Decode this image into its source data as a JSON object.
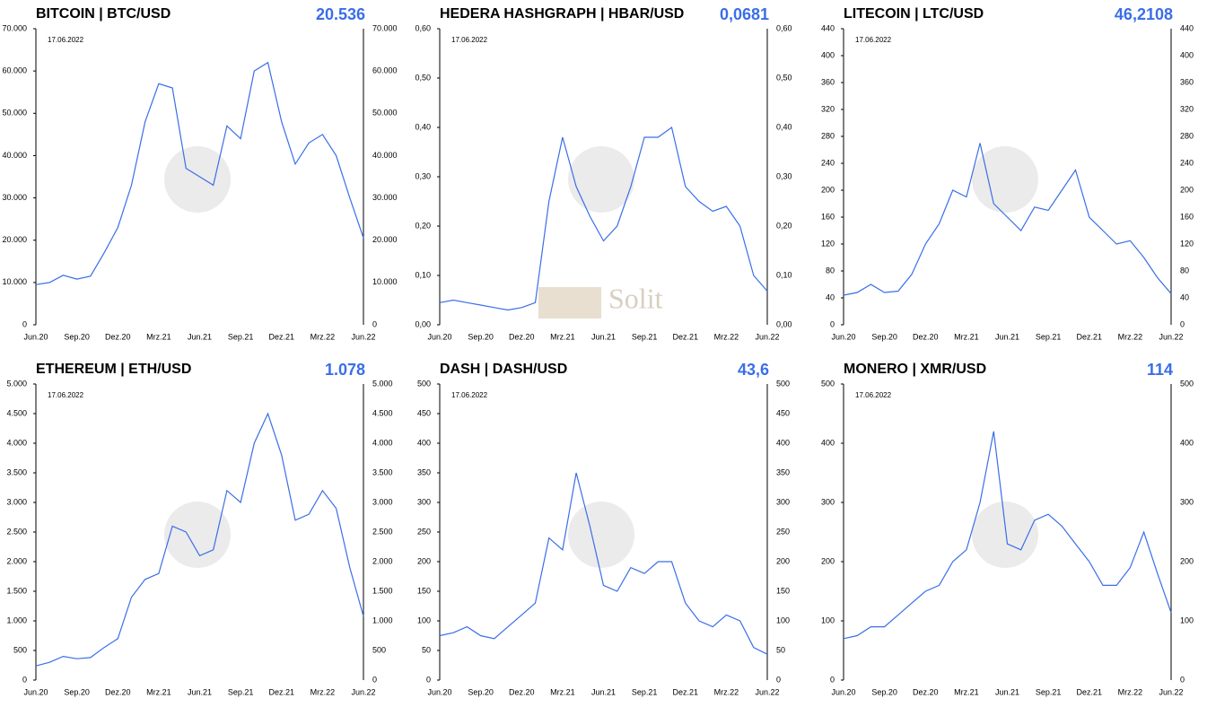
{
  "chart_data": [
    {
      "type": "line",
      "title": "BITCOIN | BTC/USD",
      "price": "20.536",
      "date_label": "17.06.2022",
      "color": "#3a6ee8",
      "x": [
        "2020-06",
        "2020-07",
        "2020-08",
        "2020-09",
        "2020-10",
        "2020-11",
        "2020-12",
        "2021-01",
        "2021-02",
        "2021-03",
        "2021-04",
        "2021-05",
        "2021-06",
        "2021-07",
        "2021-08",
        "2021-09",
        "2021-10",
        "2021-11",
        "2021-12",
        "2022-01",
        "2022-02",
        "2022-03",
        "2022-04",
        "2022-05",
        "2022-06"
      ],
      "values": [
        9500,
        10000,
        11700,
        10800,
        11500,
        17000,
        23000,
        33000,
        48000,
        57000,
        56000,
        37000,
        35000,
        33000,
        47000,
        44000,
        60000,
        62000,
        48000,
        38000,
        43000,
        45000,
        40000,
        30000,
        20536
      ],
      "xlim": [
        "2020-06",
        "2022-06"
      ],
      "xticks": [
        {
          "value": "2020-06",
          "label": "Jun.20"
        },
        {
          "value": "2020-09",
          "label": "Sep.20"
        },
        {
          "value": "2020-12",
          "label": "Dez.20"
        },
        {
          "value": "2021-03",
          "label": "Mrz.21"
        },
        {
          "value": "2021-06",
          "label": "Jun.21"
        },
        {
          "value": "2021-09",
          "label": "Sep.21"
        },
        {
          "value": "2021-12",
          "label": "Dez.21"
        },
        {
          "value": "2022-03",
          "label": "Mrz.22"
        },
        {
          "value": "2022-06",
          "label": "Jun.22"
        }
      ],
      "ylim": [
        0,
        70000
      ],
      "yticks": [
        0,
        {
          "value": 10000,
          "label": "10.000"
        },
        {
          "value": 20000,
          "label": "20.000"
        },
        {
          "value": 30000,
          "label": "30.000"
        },
        {
          "value": 40000,
          "label": "40.000"
        },
        {
          "value": 50000,
          "label": "50.000"
        },
        {
          "value": 60000,
          "label": "60.000"
        },
        {
          "value": 70000,
          "label": "70.000"
        }
      ]
    },
    {
      "type": "line",
      "title": "HEDERA HASHGRAPH | HBAR/USD",
      "price": "0,0681",
      "date_label": "17.06.2022",
      "color": "#3a6ee8",
      "watermark": "Solit",
      "x": [
        "2020-06",
        "2020-07",
        "2020-08",
        "2020-09",
        "2020-10",
        "2020-11",
        "2020-12",
        "2021-01",
        "2021-02",
        "2021-03",
        "2021-04",
        "2021-05",
        "2021-06",
        "2021-07",
        "2021-08",
        "2021-09",
        "2021-10",
        "2021-11",
        "2021-12",
        "2022-01",
        "2022-02",
        "2022-03",
        "2022-04",
        "2022-05",
        "2022-06"
      ],
      "values": [
        0.045,
        0.05,
        0.045,
        0.04,
        0.035,
        0.03,
        0.035,
        0.045,
        0.25,
        0.38,
        0.28,
        0.22,
        0.17,
        0.2,
        0.28,
        0.38,
        0.38,
        0.4,
        0.28,
        0.25,
        0.23,
        0.24,
        0.2,
        0.1,
        0.0681
      ],
      "xlim": [
        "2020-06",
        "2022-06"
      ],
      "xticks": [
        {
          "value": "2020-06",
          "label": "Jun.20"
        },
        {
          "value": "2020-09",
          "label": "Sep.20"
        },
        {
          "value": "2020-12",
          "label": "Dez.20"
        },
        {
          "value": "2021-03",
          "label": "Mrz.21"
        },
        {
          "value": "2021-06",
          "label": "Jun.21"
        },
        {
          "value": "2021-09",
          "label": "Sep.21"
        },
        {
          "value": "2021-12",
          "label": "Dez.21"
        },
        {
          "value": "2022-03",
          "label": "Mrz.22"
        },
        {
          "value": "2022-06",
          "label": "Jun.22"
        }
      ],
      "ylim": [
        0,
        0.6
      ],
      "yticks": [
        {
          "value": 0,
          "label": "0,00"
        },
        {
          "value": 0.1,
          "label": "0,10"
        },
        {
          "value": 0.2,
          "label": "0,20"
        },
        {
          "value": 0.3,
          "label": "0,30"
        },
        {
          "value": 0.4,
          "label": "0,40"
        },
        {
          "value": 0.5,
          "label": "0,50"
        },
        {
          "value": 0.6,
          "label": "0,60"
        }
      ]
    },
    {
      "type": "line",
      "title": "LITECOIN | LTC/USD",
      "price": "46,2108",
      "date_label": "17.06.2022",
      "color": "#3a6ee8",
      "x": [
        "2020-06",
        "2020-07",
        "2020-08",
        "2020-09",
        "2020-10",
        "2020-11",
        "2020-12",
        "2021-01",
        "2021-02",
        "2021-03",
        "2021-04",
        "2021-05",
        "2021-06",
        "2021-07",
        "2021-08",
        "2021-09",
        "2021-10",
        "2021-11",
        "2021-12",
        "2022-01",
        "2022-02",
        "2022-03",
        "2022-04",
        "2022-05",
        "2022-06"
      ],
      "values": [
        44,
        48,
        60,
        48,
        50,
        75,
        120,
        150,
        200,
        190,
        270,
        180,
        160,
        140,
        175,
        170,
        200,
        230,
        160,
        140,
        120,
        125,
        100,
        70,
        46.2108
      ],
      "xlim": [
        "2020-06",
        "2022-06"
      ],
      "xticks": [
        {
          "value": "2020-06",
          "label": "Jun.20"
        },
        {
          "value": "2020-09",
          "label": "Sep.20"
        },
        {
          "value": "2020-12",
          "label": "Dez.20"
        },
        {
          "value": "2021-03",
          "label": "Mrz.21"
        },
        {
          "value": "2021-06",
          "label": "Jun.21"
        },
        {
          "value": "2021-09",
          "label": "Sep.21"
        },
        {
          "value": "2021-12",
          "label": "Dez.21"
        },
        {
          "value": "2022-03",
          "label": "Mrz.22"
        },
        {
          "value": "2022-06",
          "label": "Jun.22"
        }
      ],
      "ylim": [
        0,
        440
      ],
      "yticks": [
        0,
        40,
        80,
        120,
        160,
        200,
        240,
        280,
        320,
        360,
        400,
        440
      ]
    },
    {
      "type": "line",
      "title": "ETHEREUM | ETH/USD",
      "price": "1.078",
      "date_label": "17.06.2022",
      "color": "#3a6ee8",
      "x": [
        "2020-06",
        "2020-07",
        "2020-08",
        "2020-09",
        "2020-10",
        "2020-11",
        "2020-12",
        "2021-01",
        "2021-02",
        "2021-03",
        "2021-04",
        "2021-05",
        "2021-06",
        "2021-07",
        "2021-08",
        "2021-09",
        "2021-10",
        "2021-11",
        "2021-12",
        "2022-01",
        "2022-02",
        "2022-03",
        "2022-04",
        "2022-05",
        "2022-06"
      ],
      "values": [
        240,
        300,
        400,
        360,
        380,
        550,
        700,
        1400,
        1700,
        1800,
        2600,
        2500,
        2100,
        2200,
        3200,
        3000,
        4000,
        4500,
        3800,
        2700,
        2800,
        3200,
        2900,
        1900,
        1078
      ],
      "xlim": [
        "2020-06",
        "2022-06"
      ],
      "xticks": [
        {
          "value": "2020-06",
          "label": "Jun.20"
        },
        {
          "value": "2020-09",
          "label": "Sep.20"
        },
        {
          "value": "2020-12",
          "label": "Dez.20"
        },
        {
          "value": "2021-03",
          "label": "Mrz.21"
        },
        {
          "value": "2021-06",
          "label": "Jun.21"
        },
        {
          "value": "2021-09",
          "label": "Sep.21"
        },
        {
          "value": "2021-12",
          "label": "Dez.21"
        },
        {
          "value": "2022-03",
          "label": "Mrz.22"
        },
        {
          "value": "2022-06",
          "label": "Jun.22"
        }
      ],
      "ylim": [
        0,
        5000
      ],
      "yticks": [
        0,
        500,
        {
          "value": 1000,
          "label": "1.000"
        },
        {
          "value": 1500,
          "label": "1.500"
        },
        {
          "value": 2000,
          "label": "2.000"
        },
        {
          "value": 2500,
          "label": "2.500"
        },
        {
          "value": 3000,
          "label": "3.000"
        },
        {
          "value": 3500,
          "label": "3.500"
        },
        {
          "value": 4000,
          "label": "4.000"
        },
        {
          "value": 4500,
          "label": "4.500"
        },
        {
          "value": 5000,
          "label": "5.000"
        }
      ]
    },
    {
      "type": "line",
      "title": "DASH | DASH/USD",
      "price": "43,6",
      "date_label": "17.06.2022",
      "color": "#3a6ee8",
      "x": [
        "2020-06",
        "2020-07",
        "2020-08",
        "2020-09",
        "2020-10",
        "2020-11",
        "2020-12",
        "2021-01",
        "2021-02",
        "2021-03",
        "2021-04",
        "2021-05",
        "2021-06",
        "2021-07",
        "2021-08",
        "2021-09",
        "2021-10",
        "2021-11",
        "2021-12",
        "2022-01",
        "2022-02",
        "2022-03",
        "2022-04",
        "2022-05",
        "2022-06"
      ],
      "values": [
        75,
        80,
        90,
        75,
        70,
        90,
        110,
        130,
        240,
        220,
        350,
        260,
        160,
        150,
        190,
        180,
        200,
        200,
        130,
        100,
        90,
        110,
        100,
        55,
        43.6
      ],
      "xlim": [
        "2020-06",
        "2022-06"
      ],
      "xticks": [
        {
          "value": "2020-06",
          "label": "Jun.20"
        },
        {
          "value": "2020-09",
          "label": "Sep.20"
        },
        {
          "value": "2020-12",
          "label": "Dez.20"
        },
        {
          "value": "2021-03",
          "label": "Mrz.21"
        },
        {
          "value": "2021-06",
          "label": "Jun.21"
        },
        {
          "value": "2021-09",
          "label": "Sep.21"
        },
        {
          "value": "2021-12",
          "label": "Dez.21"
        },
        {
          "value": "2022-03",
          "label": "Mrz.22"
        },
        {
          "value": "2022-06",
          "label": "Jun.22"
        }
      ],
      "ylim": [
        0,
        500
      ],
      "yticks": [
        0,
        50,
        100,
        150,
        200,
        250,
        300,
        350,
        400,
        450,
        500
      ]
    },
    {
      "type": "line",
      "title": "MONERO | XMR/USD",
      "price": "114",
      "date_label": "17.06.2022",
      "color": "#3a6ee8",
      "x": [
        "2020-06",
        "2020-07",
        "2020-08",
        "2020-09",
        "2020-10",
        "2020-11",
        "2020-12",
        "2021-01",
        "2021-02",
        "2021-03",
        "2021-04",
        "2021-05",
        "2021-06",
        "2021-07",
        "2021-08",
        "2021-09",
        "2021-10",
        "2021-11",
        "2021-12",
        "2022-01",
        "2022-02",
        "2022-03",
        "2022-04",
        "2022-05",
        "2022-06"
      ],
      "values": [
        70,
        75,
        90,
        90,
        110,
        130,
        150,
        160,
        200,
        220,
        300,
        420,
        230,
        220,
        270,
        280,
        260,
        230,
        200,
        160,
        160,
        190,
        250,
        180,
        114
      ],
      "xlim": [
        "2020-06",
        "2022-06"
      ],
      "xticks": [
        {
          "value": "2020-06",
          "label": "Jun.20"
        },
        {
          "value": "2020-09",
          "label": "Sep.20"
        },
        {
          "value": "2020-12",
          "label": "Dez.20"
        },
        {
          "value": "2021-03",
          "label": "Mrz.21"
        },
        {
          "value": "2021-06",
          "label": "Jun.21"
        },
        {
          "value": "2021-09",
          "label": "Sep.21"
        },
        {
          "value": "2021-12",
          "label": "Dez.21"
        },
        {
          "value": "2022-03",
          "label": "Mrz.22"
        },
        {
          "value": "2022-06",
          "label": "Jun.22"
        }
      ],
      "ylim": [
        0,
        500
      ],
      "yticks": [
        0,
        100,
        200,
        300,
        400,
        500
      ]
    }
  ]
}
